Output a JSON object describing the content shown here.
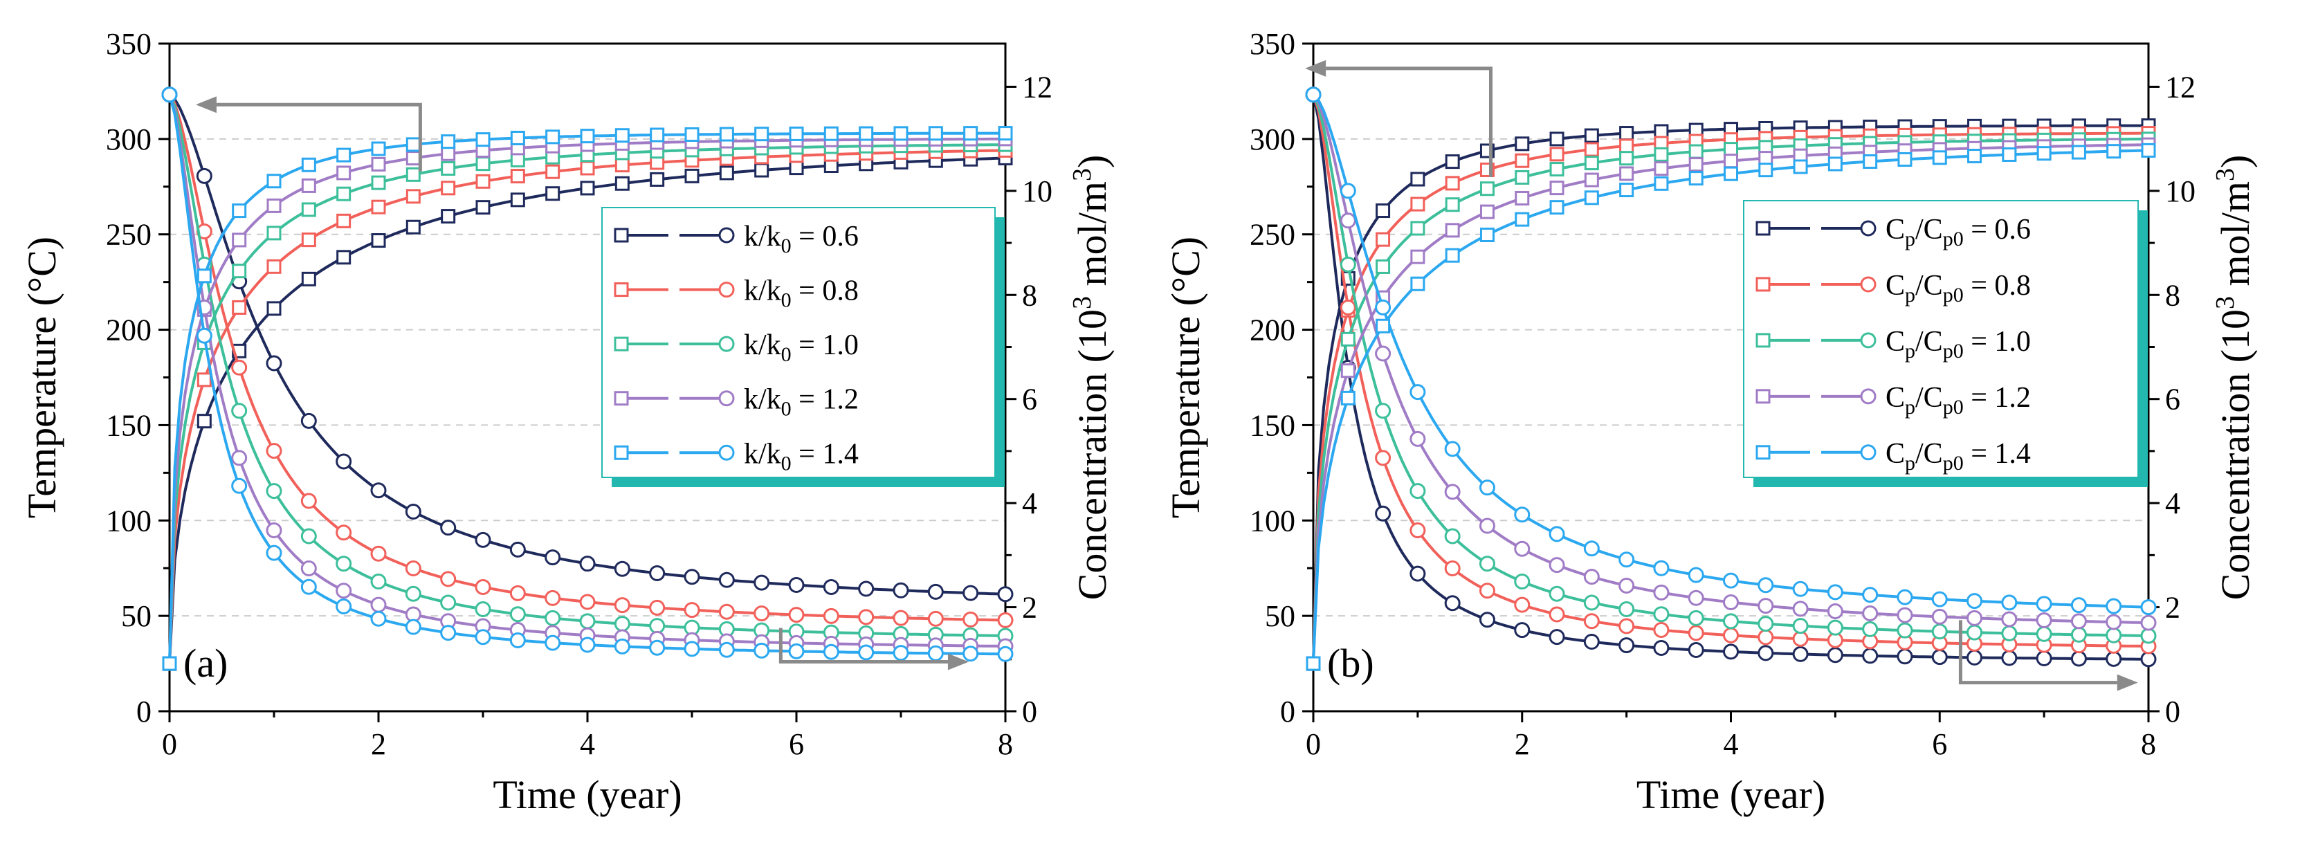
{
  "chart_data": [
    {
      "type": "line",
      "panel_label": "(a)",
      "xlabel": "Time (year)",
      "ylabel_left": "Temperature (°C)",
      "ylabel_right_base": "Concentration (10",
      "ylabel_right_exp": "3",
      "ylabel_right_mid": " mol/m",
      "ylabel_right_exp2": "3",
      "ylabel_right_end": ")",
      "xlim": [
        0,
        8
      ],
      "ylim_left": [
        0,
        350
      ],
      "ylim_right": [
        0,
        12.83
      ],
      "x_ticks": [
        "0",
        "2",
        "4",
        "6",
        "8"
      ],
      "y_left_ticks": [
        "0",
        "50",
        "100",
        "150",
        "200",
        "250",
        "300",
        "350"
      ],
      "y_right_ticks": [
        "0",
        "2",
        "4",
        "6",
        "8",
        "10",
        "12"
      ],
      "legend_prefix": "k/k",
      "legend_sub": "0",
      "legend_position": "center-right",
      "series": [
        {
          "name": "k/k0 = 0.6",
          "label_value": " = 0.6",
          "color": "#1f2a5c",
          "param": 0.6
        },
        {
          "name": "k/k0 = 0.8",
          "label_value": " = 0.8",
          "color": "#f2605a",
          "param": 0.8
        },
        {
          "name": "k/k0 = 1.0",
          "label_value": " = 1.0",
          "color": "#3cbf9a",
          "param": 1.0
        },
        {
          "name": "k/k0 = 1.2",
          "label_value": " = 1.2",
          "color": "#a07cc6",
          "param": 1.2
        },
        {
          "name": "k/k0 = 1.4",
          "label_value": " = 1.4",
          "color": "#2ba8f0",
          "param": 1.4
        }
      ],
      "temperature_start": 25,
      "temperature_end_values": [
        290,
        294,
        297,
        300,
        303
      ],
      "concentration_start": 11.85,
      "concentration_end_values": [
        2.25,
        1.75,
        1.45,
        1.25,
        1.1
      ]
    },
    {
      "type": "line",
      "panel_label": "(b)",
      "xlabel": "Time (year)",
      "ylabel_left": "Temperature (°C)",
      "ylabel_right_base": "Concentration (10",
      "ylabel_right_exp": "3",
      "ylabel_right_mid": " mol/m",
      "ylabel_right_exp2": "3",
      "ylabel_right_end": ")",
      "xlim": [
        0,
        8
      ],
      "ylim_left": [
        0,
        350
      ],
      "ylim_right": [
        0,
        12.83
      ],
      "x_ticks": [
        "0",
        "2",
        "4",
        "6",
        "8"
      ],
      "y_left_ticks": [
        "0",
        "50",
        "100",
        "150",
        "200",
        "250",
        "300",
        "350"
      ],
      "y_right_ticks": [
        "0",
        "2",
        "4",
        "6",
        "8",
        "10",
        "12"
      ],
      "legend_prefix": "C",
      "legend_sub": "p",
      "legend_prefix2": "/C",
      "legend_sub2": "p0",
      "legend_position": "center-right",
      "series": [
        {
          "name": "Cp/Cp0 = 0.6",
          "label_value": " = 0.6",
          "color": "#1f2a5c",
          "param": 0.6
        },
        {
          "name": "Cp/Cp0 = 0.8",
          "label_value": " = 0.8",
          "color": "#f2605a",
          "param": 0.8
        },
        {
          "name": "Cp/Cp0 = 1.0",
          "label_value": " = 1.0",
          "color": "#3cbf9a",
          "param": 1.0
        },
        {
          "name": "Cp/Cp0 = 1.2",
          "label_value": " = 1.2",
          "color": "#a07cc6",
          "param": 1.2
        },
        {
          "name": "Cp/Cp0 = 1.4",
          "label_value": " = 1.4",
          "color": "#2ba8f0",
          "param": 1.4
        }
      ],
      "temperature_start": 25,
      "temperature_end_values": [
        307,
        303,
        300,
        297,
        294
      ],
      "concentration_start": 11.85,
      "concentration_end_values": [
        1.0,
        1.25,
        1.45,
        1.7,
        2.0
      ]
    }
  ]
}
